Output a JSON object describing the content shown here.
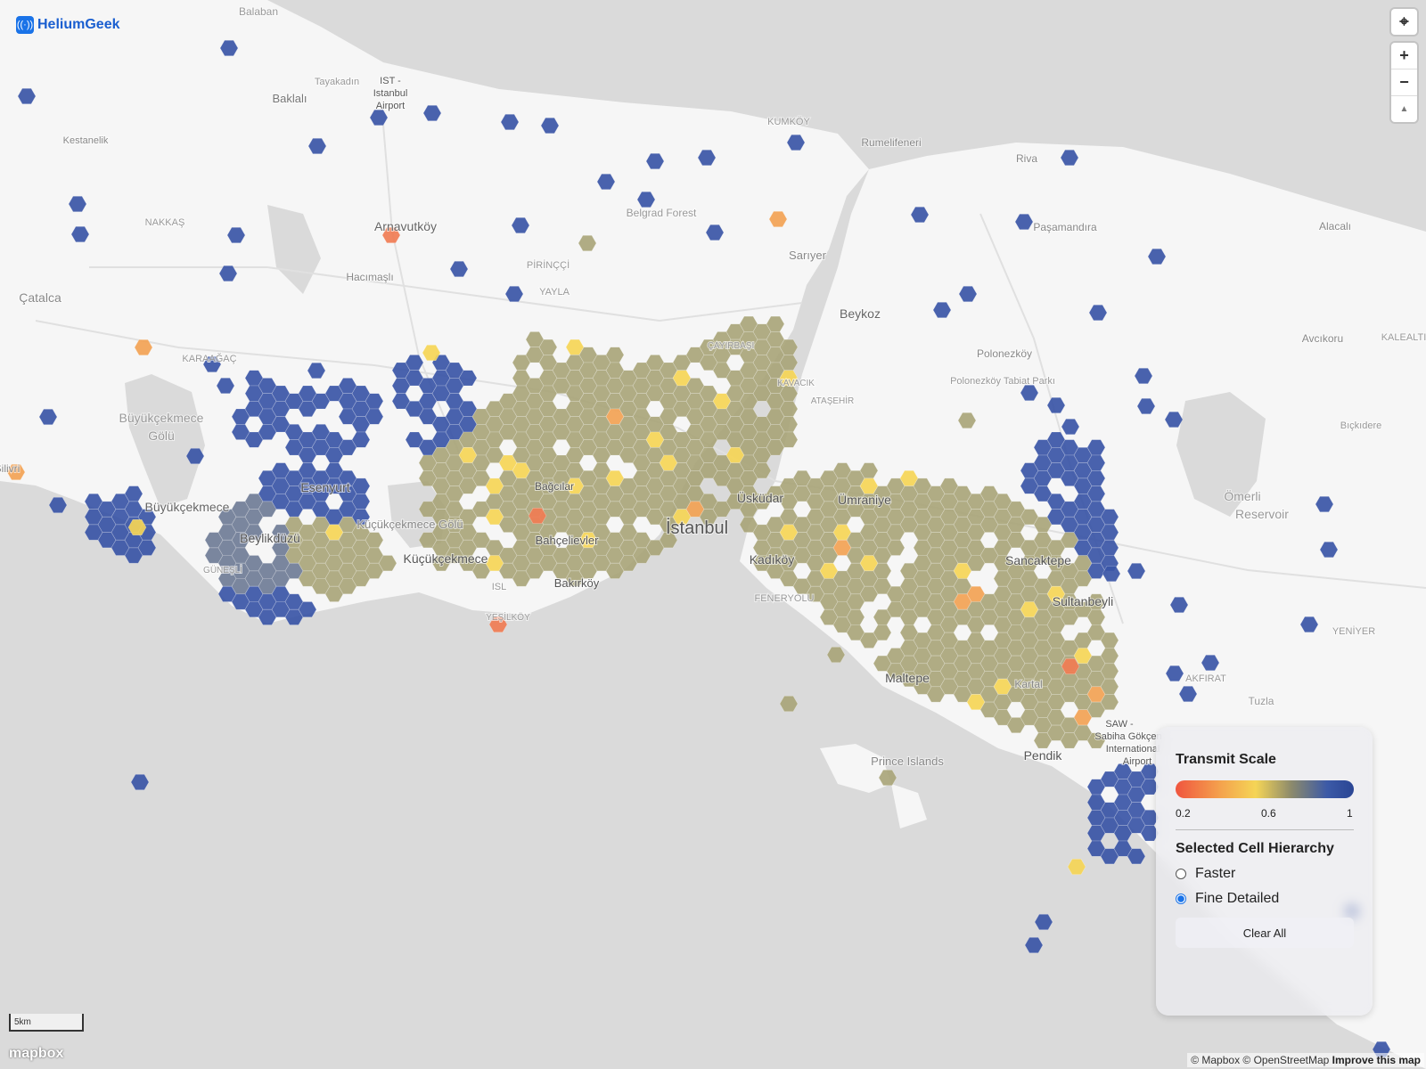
{
  "app": {
    "brand": "HeliumGeek"
  },
  "colors": {
    "land": "#f6f6f6",
    "water": "#dadada",
    "blue": "#3a55a6",
    "olive": "#a9a57a",
    "yellow": "#f5d556",
    "orange": "#f2a254",
    "red": "#f07c54",
    "slate": "#6f7c96"
  },
  "place_labels": [
    {
      "text": "Balaban"
    },
    {
      "text": "Tayakadın"
    },
    {
      "text": "IST -"
    },
    {
      "text": "Istanbul"
    },
    {
      "text": "Airport"
    },
    {
      "text": "Baklalı"
    },
    {
      "text": "Kestanelik"
    },
    {
      "text": "KUMKÖY"
    },
    {
      "text": "Rumelifeneri"
    },
    {
      "text": "Riva"
    },
    {
      "text": "NAKKAŞ"
    },
    {
      "text": "Arnavutköy"
    },
    {
      "text": "Belgrad Forest"
    },
    {
      "text": "Paşamandıra"
    },
    {
      "text": "Alacalı"
    },
    {
      "text": "PİRİNÇÇİ"
    },
    {
      "text": "Hacımaşlı"
    },
    {
      "text": "YAYLA"
    },
    {
      "text": "Çatalca"
    },
    {
      "text": "Beykoz"
    },
    {
      "text": "Polonezköy"
    },
    {
      "text": "Polonezköy Tabiat Parkı"
    },
    {
      "text": "Avcıkoru"
    },
    {
      "text": "KALEALTI"
    },
    {
      "text": "KARAAĞAÇ"
    },
    {
      "text": "Büyükçekmece"
    },
    {
      "text": "Gölü"
    },
    {
      "text": "Bağcılar"
    },
    {
      "text": "Esenyurt"
    },
    {
      "text": "Büyükçekmece"
    },
    {
      "text": "Beylikdüzü"
    },
    {
      "text": "Küçükçekmece Gölü"
    },
    {
      "text": "Küçükçekmece"
    },
    {
      "text": "Bahçelievler"
    },
    {
      "text": "İstanbul"
    },
    {
      "text": "Üsküdar"
    },
    {
      "text": "Ümraniye"
    },
    {
      "text": "Kadıköy"
    },
    {
      "text": "Sancaktepe"
    },
    {
      "text": "Sultanbeyli"
    },
    {
      "text": "Bakırköy"
    },
    {
      "text": "FENERYOLU"
    },
    {
      "text": "Maltepe"
    },
    {
      "text": "Kartal"
    },
    {
      "text": "Pendik"
    },
    {
      "text": "SAW -"
    },
    {
      "text": "Sabiha Gökçen"
    },
    {
      "text": "International"
    },
    {
      "text": "Airport"
    },
    {
      "text": "Prince Islands"
    },
    {
      "text": "Ömerli"
    },
    {
      "text": "Reservoir"
    },
    {
      "text": "Bıçkıdere"
    },
    {
      "text": "AKFIRAT"
    },
    {
      "text": "Tuzla"
    },
    {
      "text": "YENİYER"
    },
    {
      "text": "ISL"
    },
    {
      "text": "GÜNEŞLİ"
    },
    {
      "text": "Sarıyer"
    },
    {
      "text": "KAVACIK"
    },
    {
      "text": "ÇAYIRBAŞI"
    },
    {
      "text": "ATAŞEHİR"
    },
    {
      "text": "YEŞİLKÖY"
    },
    {
      "text": "Silivri"
    }
  ],
  "legend": {
    "title": "Transmit Scale",
    "ticks": [
      "0.2",
      "0.6",
      "1"
    ],
    "hierarchy_title": "Selected Cell Hierarchy",
    "options": [
      "Faster",
      "Fine Detailed"
    ],
    "selected_option": "Fine Detailed",
    "clear_label": "Clear All"
  },
  "controls": {
    "locate": "⌖",
    "zoom_in": "+",
    "zoom_out": "−",
    "compass": "▲"
  },
  "scale": {
    "label": "5km"
  },
  "footer": {
    "mapbox": "mapbox",
    "attribution": "© Mapbox © OpenStreetMap",
    "improve": "Improve this map"
  }
}
